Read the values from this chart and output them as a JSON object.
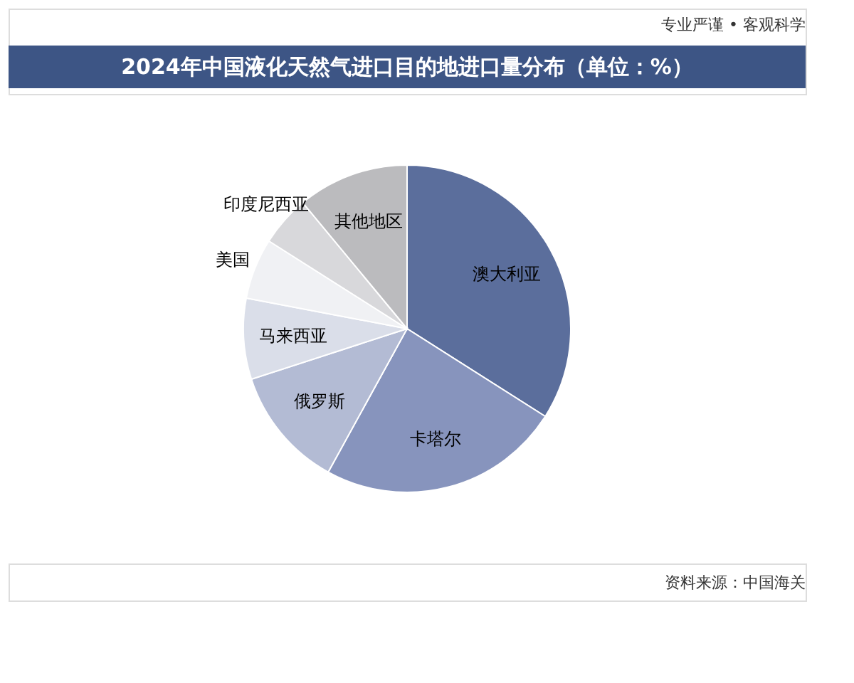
{
  "chart_data": {
    "type": "pie",
    "title": "2024年中国液化天然气进口目的地进口量分布（单位：%）",
    "categories": [
      "澳大利亚",
      "卡塔尔",
      "俄罗斯",
      "马来西亚",
      "美国",
      "印度尼西亚",
      "其他地区"
    ],
    "values": [
      34,
      24,
      12,
      8,
      6,
      5,
      11
    ],
    "colors": [
      "#5b6e9c",
      "#8794bd",
      "#b3bbd4",
      "#dadee9",
      "#f0f1f4",
      "#d8d8db",
      "#bbbbbe"
    ],
    "annotations": [
      "专业严谨 • 客观科学",
      "资料来源：中国海关"
    ]
  }
}
